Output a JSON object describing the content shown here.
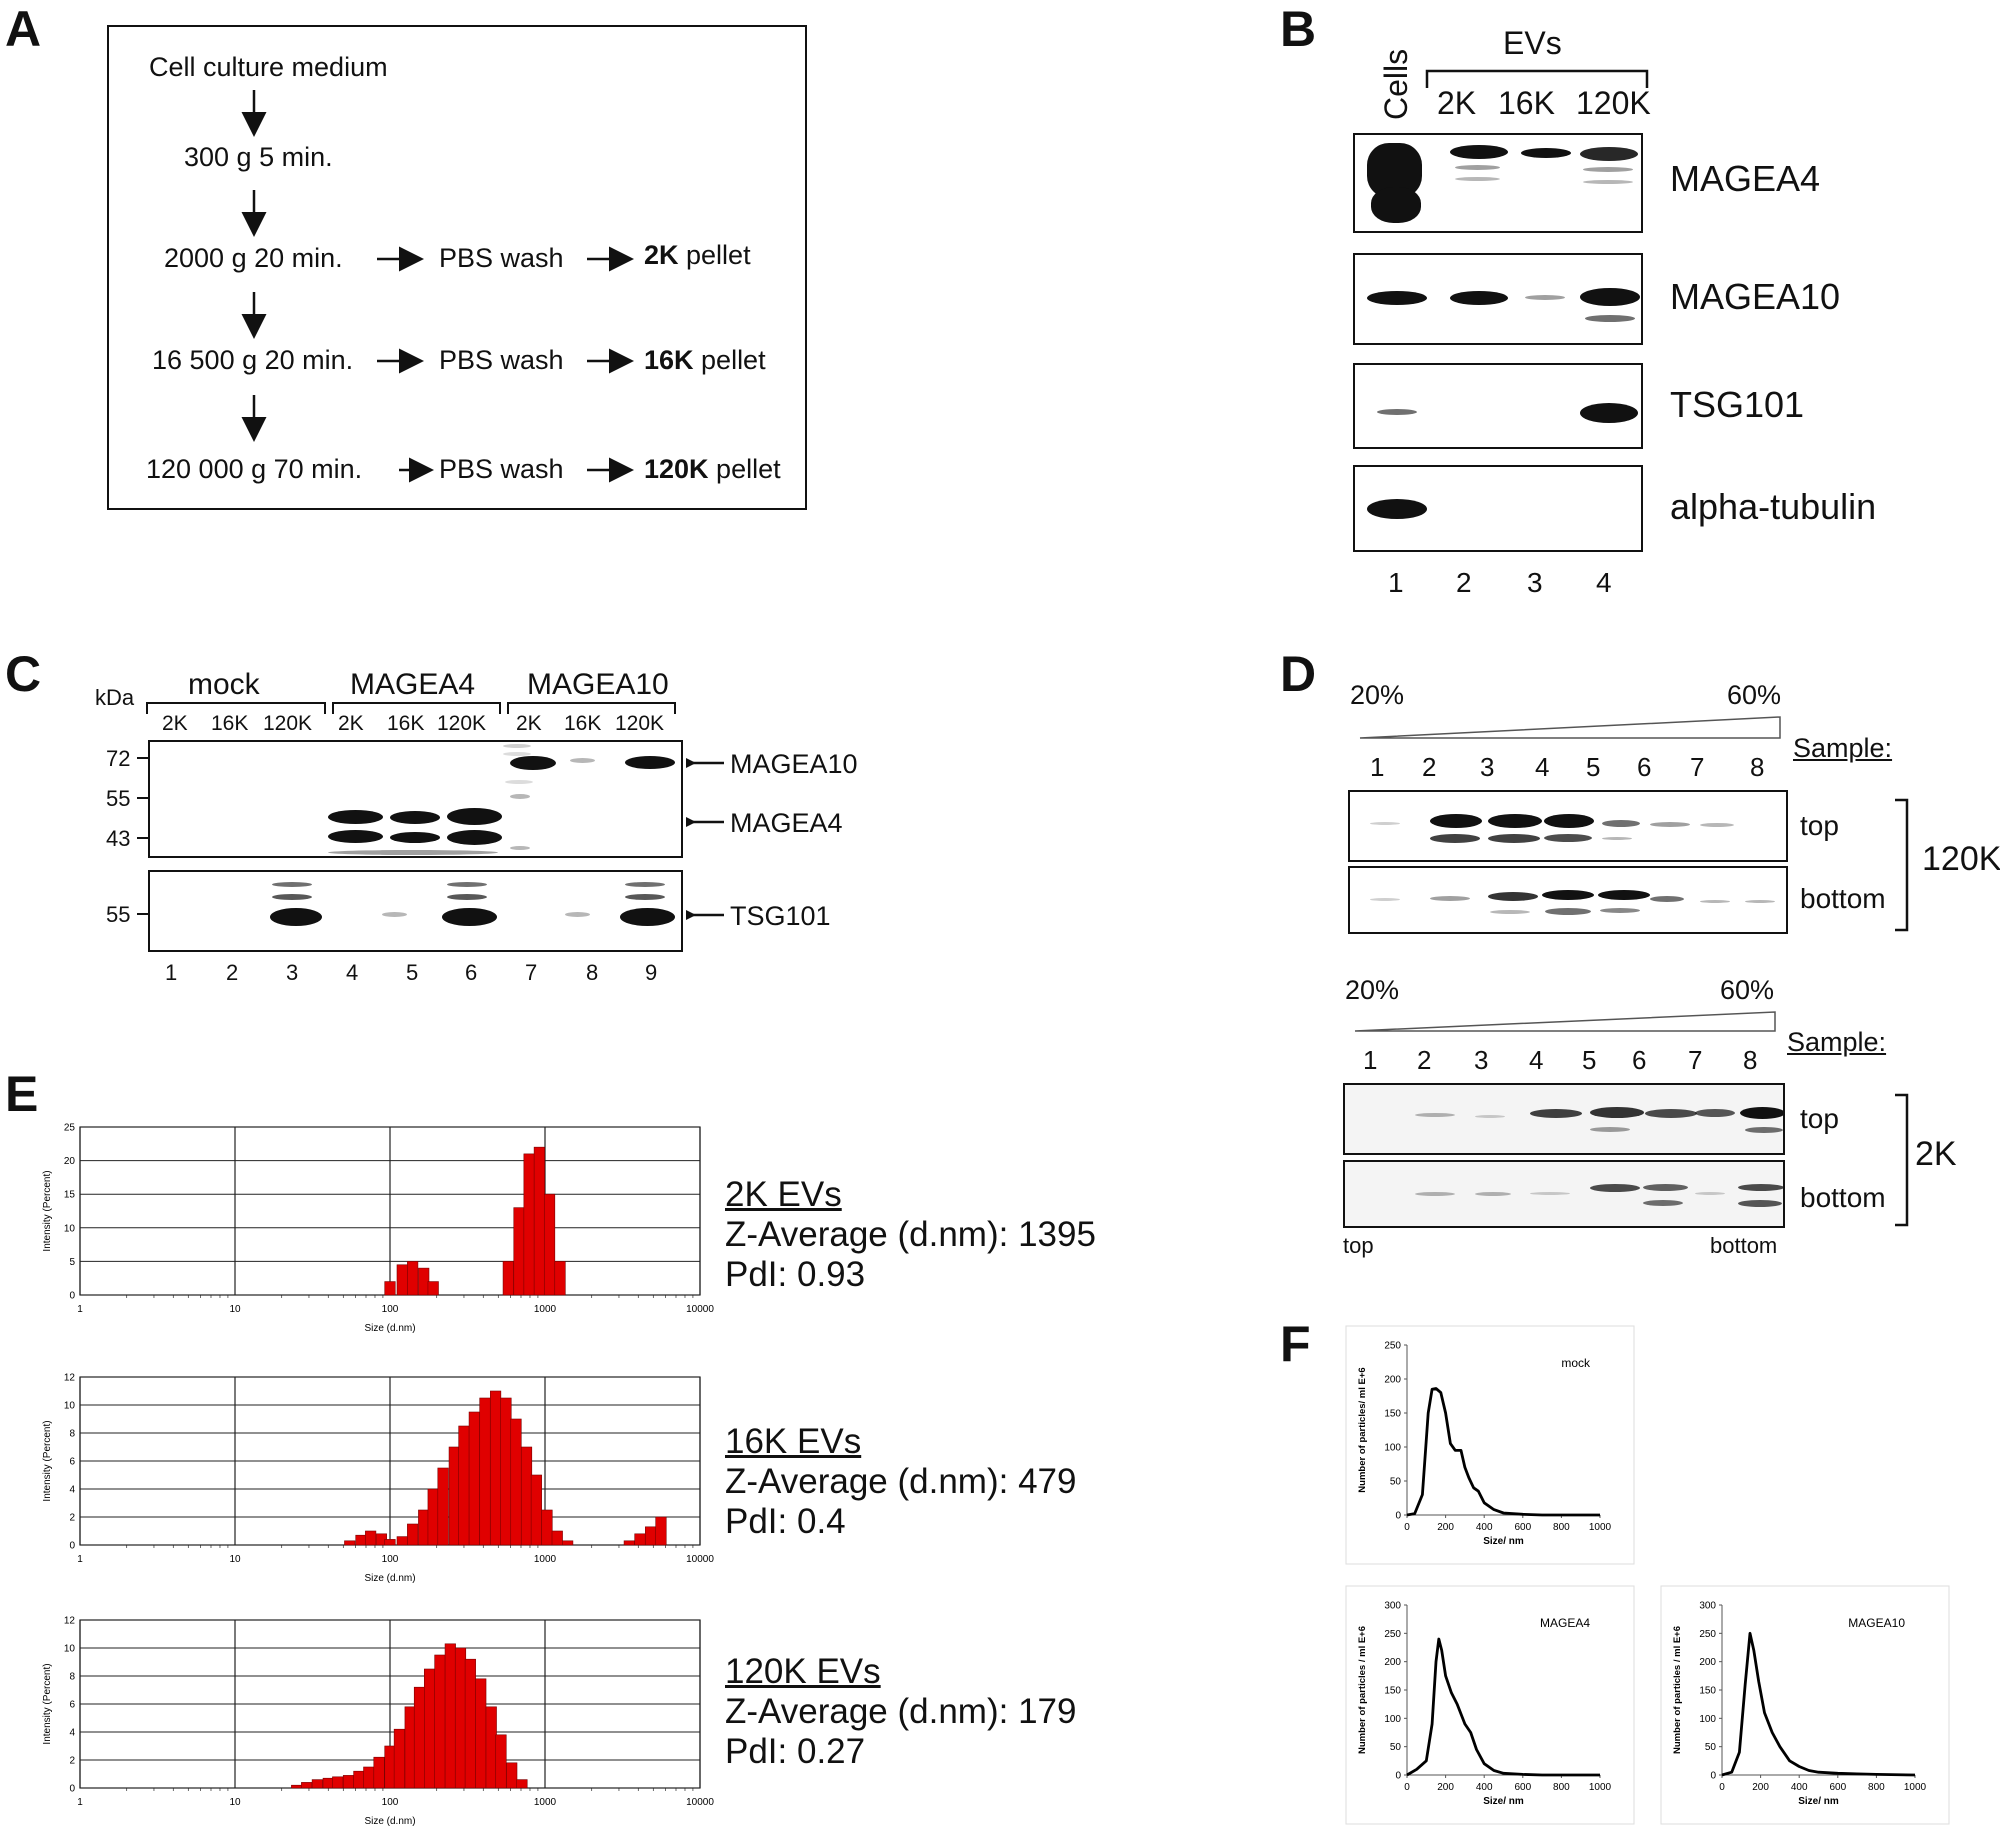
{
  "panels": {
    "A": "A",
    "B": "B",
    "C": "C",
    "D": "D",
    "E": "E",
    "F": "F"
  },
  "panelA": {
    "steps": [
      "Cell culture medium",
      "300 g 5 min.",
      "2000 g 20 min.",
      "16 500 g 20 min.",
      "120 000 g 70 min."
    ],
    "wash": "PBS wash",
    "pellets": [
      {
        "bold": "2K",
        "rest": " pellet"
      },
      {
        "bold": "16K",
        "rest": " pellet"
      },
      {
        "bold": "120K",
        "rest": " pellet"
      }
    ]
  },
  "panelB": {
    "cells_label": "Cells",
    "evs_label": "EVs",
    "columns": [
      "2K",
      "16K",
      "120K"
    ],
    "blots": [
      "MAGEA4",
      "MAGEA10",
      "TSG101",
      "alpha-tubulin"
    ],
    "lanes": [
      "1",
      "2",
      "3",
      "4"
    ]
  },
  "panelC": {
    "kda": "kDa",
    "groups": [
      "mock",
      "MAGEA4",
      "MAGEA10"
    ],
    "sub": [
      "2K",
      "16K",
      "120K"
    ],
    "markers_top": [
      "72",
      "55",
      "43"
    ],
    "markers_bottom": [
      "55"
    ],
    "arrows": [
      "MAGEA10",
      "MAGEA4",
      "TSG101"
    ],
    "lanes": [
      "1",
      "2",
      "3",
      "4",
      "5",
      "6",
      "7",
      "8",
      "9"
    ]
  },
  "panelD": {
    "pct_low": "20%",
    "pct_high": "60%",
    "sample": "Sample:",
    "fractions": [
      "1",
      "2",
      "3",
      "4",
      "5",
      "6",
      "7",
      "8"
    ],
    "rows": [
      "top",
      "bottom"
    ],
    "group_top": "120K",
    "group_bottom": "2K",
    "axis_left": "top",
    "axis_right": "bottom"
  },
  "panelE": {
    "ylabel": "Intensity (Percent)",
    "xlabel": "Size (d.nm)",
    "za_label": "Z-Average (d.nm): ",
    "pdi_label": "PdI: ",
    "charts": [
      {
        "title": "2K EVs",
        "z": "1395",
        "pdi": "0.93"
      },
      {
        "title": "16K EVs",
        "z": "479",
        "pdi": "0.4"
      },
      {
        "title": "120K EVs",
        "z": "179",
        "pdi": "0.27"
      }
    ]
  },
  "panelF": {
    "ylabel_mock": "Number of particles/ ml E+6",
    "ylabel": "Number of particles / ml E+6",
    "xlabel": "Size/ nm",
    "titles": [
      "mock",
      "MAGEA4",
      "MAGEA10"
    ]
  },
  "chart_data": [
    {
      "type": "bar",
      "title": "2K EVs",
      "xlabel": "Size (d.nm)",
      "ylabel": "Intensity (Percent)",
      "x_scale": "log",
      "xlim": [
        1,
        10000
      ],
      "ylim": [
        0,
        25
      ],
      "x_ticks": [
        "1",
        "10",
        "100",
        "1000",
        "10000"
      ],
      "y_ticks": [
        "0",
        "5",
        "10",
        "15",
        "20",
        "25"
      ],
      "grid": true,
      "bins": [
        {
          "x": 100,
          "y": 2
        },
        {
          "x": 120,
          "y": 4.5
        },
        {
          "x": 140,
          "y": 5
        },
        {
          "x": 165,
          "y": 4
        },
        {
          "x": 190,
          "y": 2
        },
        {
          "x": 580,
          "y": 5
        },
        {
          "x": 680,
          "y": 13
        },
        {
          "x": 790,
          "y": 21
        },
        {
          "x": 920,
          "y": 22
        },
        {
          "x": 1070,
          "y": 15
        },
        {
          "x": 1250,
          "y": 5
        }
      ]
    },
    {
      "type": "bar",
      "title": "16K EVs",
      "xlabel": "Size (d.nm)",
      "ylabel": "Intensity (Percent)",
      "x_scale": "log",
      "xlim": [
        1,
        10000
      ],
      "ylim": [
        0,
        12
      ],
      "x_ticks": [
        "1",
        "10",
        "100",
        "1000",
        "10000"
      ],
      "y_ticks": [
        "0",
        "2",
        "4",
        "6",
        "8",
        "10",
        "12"
      ],
      "grid": true,
      "bins": [
        {
          "x": 55,
          "y": 0.3
        },
        {
          "x": 65,
          "y": 0.7
        },
        {
          "x": 75,
          "y": 1
        },
        {
          "x": 88,
          "y": 0.8
        },
        {
          "x": 100,
          "y": 0.4
        },
        {
          "x": 120,
          "y": 0.6
        },
        {
          "x": 140,
          "y": 1.5
        },
        {
          "x": 165,
          "y": 2.5
        },
        {
          "x": 190,
          "y": 4
        },
        {
          "x": 220,
          "y": 5.5
        },
        {
          "x": 260,
          "y": 7
        },
        {
          "x": 300,
          "y": 8.5
        },
        {
          "x": 350,
          "y": 9.5
        },
        {
          "x": 410,
          "y": 10.5
        },
        {
          "x": 480,
          "y": 11
        },
        {
          "x": 560,
          "y": 10.5
        },
        {
          "x": 650,
          "y": 9
        },
        {
          "x": 760,
          "y": 7
        },
        {
          "x": 880,
          "y": 5
        },
        {
          "x": 1030,
          "y": 2.5
        },
        {
          "x": 1200,
          "y": 1
        },
        {
          "x": 1400,
          "y": 0.3
        },
        {
          "x": 3500,
          "y": 0.3
        },
        {
          "x": 4100,
          "y": 0.8
        },
        {
          "x": 4800,
          "y": 1.3
        },
        {
          "x": 5600,
          "y": 2
        }
      ]
    },
    {
      "type": "bar",
      "title": "120K EVs",
      "xlabel": "Size (d.nm)",
      "ylabel": "Intensity (Percent)",
      "x_scale": "log",
      "xlim": [
        1,
        10000
      ],
      "ylim": [
        0,
        12
      ],
      "x_ticks": [
        "1",
        "10",
        "100",
        "1000",
        "10000"
      ],
      "y_ticks": [
        "0",
        "2",
        "4",
        "6",
        "8",
        "10",
        "12"
      ],
      "grid": true,
      "bins": [
        {
          "x": 25,
          "y": 0.2
        },
        {
          "x": 29,
          "y": 0.4
        },
        {
          "x": 34,
          "y": 0.6
        },
        {
          "x": 40,
          "y": 0.7
        },
        {
          "x": 46,
          "y": 0.8
        },
        {
          "x": 54,
          "y": 0.9
        },
        {
          "x": 63,
          "y": 1.2
        },
        {
          "x": 73,
          "y": 1.5
        },
        {
          "x": 85,
          "y": 2.2
        },
        {
          "x": 100,
          "y": 3
        },
        {
          "x": 115,
          "y": 4.2
        },
        {
          "x": 135,
          "y": 5.8
        },
        {
          "x": 155,
          "y": 7.2
        },
        {
          "x": 180,
          "y": 8.5
        },
        {
          "x": 210,
          "y": 9.5
        },
        {
          "x": 245,
          "y": 10.3
        },
        {
          "x": 285,
          "y": 10
        },
        {
          "x": 330,
          "y": 9.2
        },
        {
          "x": 385,
          "y": 7.8
        },
        {
          "x": 450,
          "y": 5.8
        },
        {
          "x": 520,
          "y": 3.8
        },
        {
          "x": 610,
          "y": 1.8
        },
        {
          "x": 710,
          "y": 0.6
        }
      ]
    },
    {
      "type": "line",
      "title": "mock",
      "xlabel": "Size/ nm",
      "ylabel": "Number of particles/ ml E+6",
      "xlim": [
        0,
        1000
      ],
      "ylim": [
        0,
        250
      ],
      "x_ticks": [
        "0",
        "200",
        "400",
        "600",
        "800",
        "1000"
      ],
      "y_ticks": [
        "0",
        "50",
        "100",
        "150",
        "200",
        "250"
      ],
      "x": [
        0,
        40,
        80,
        110,
        130,
        150,
        175,
        200,
        225,
        250,
        280,
        300,
        320,
        345,
        370,
        400,
        450,
        500,
        600,
        700,
        800,
        1000
      ],
      "y": [
        0,
        2,
        30,
        150,
        185,
        186,
        180,
        150,
        105,
        95,
        95,
        70,
        55,
        40,
        35,
        18,
        8,
        3,
        1,
        0,
        0,
        0
      ]
    },
    {
      "type": "line",
      "title": "MAGEA4",
      "xlabel": "Size/ nm",
      "ylabel": "Number of particles / ml E+6",
      "xlim": [
        0,
        1000
      ],
      "ylim": [
        0,
        300
      ],
      "x_ticks": [
        "0",
        "200",
        "400",
        "600",
        "800",
        "1000"
      ],
      "y_ticks": [
        "0",
        "50",
        "100",
        "150",
        "200",
        "250",
        "300"
      ],
      "x": [
        0,
        50,
        100,
        130,
        150,
        165,
        180,
        200,
        230,
        260,
        300,
        330,
        360,
        400,
        450,
        500,
        600,
        700,
        800,
        1000
      ],
      "y": [
        0,
        10,
        25,
        90,
        200,
        240,
        220,
        175,
        145,
        125,
        90,
        75,
        45,
        20,
        8,
        3,
        1,
        0,
        0,
        0
      ]
    },
    {
      "type": "line",
      "title": "MAGEA10",
      "xlabel": "Size/ nm",
      "ylabel": "Number of particles / ml E+6",
      "xlim": [
        0,
        1000
      ],
      "ylim": [
        0,
        300
      ],
      "x_ticks": [
        "0",
        "200",
        "400",
        "600",
        "800",
        "1000"
      ],
      "y_ticks": [
        "0",
        "50",
        "100",
        "150",
        "200",
        "250",
        "300"
      ],
      "x": [
        0,
        50,
        90,
        120,
        145,
        165,
        190,
        220,
        260,
        300,
        350,
        400,
        450,
        500,
        600,
        700,
        800,
        1000
      ],
      "y": [
        0,
        5,
        40,
        160,
        250,
        220,
        165,
        110,
        75,
        50,
        25,
        15,
        8,
        5,
        3,
        2,
        1,
        0
      ]
    }
  ]
}
